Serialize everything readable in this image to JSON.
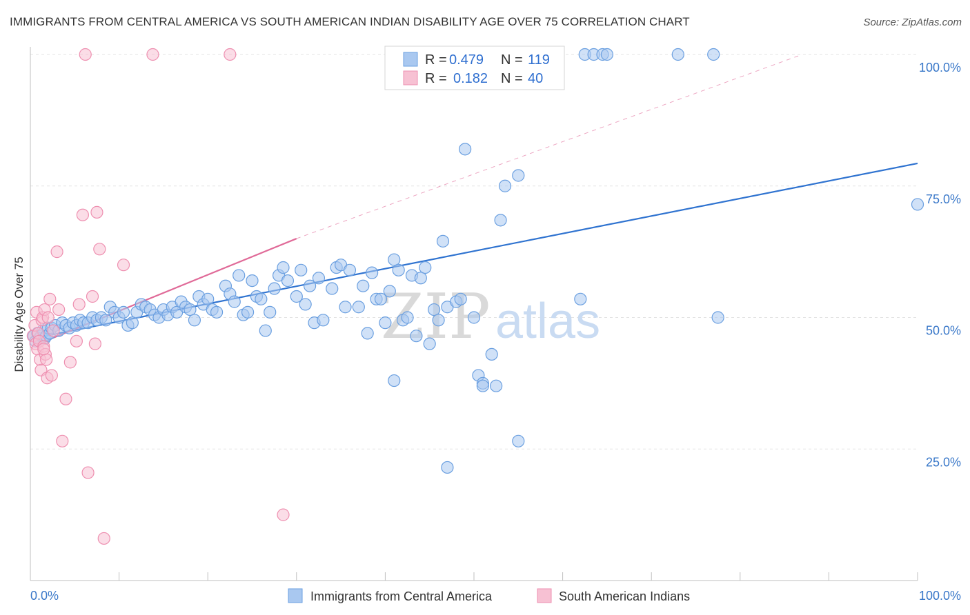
{
  "title": "IMMIGRANTS FROM CENTRAL AMERICA VS SOUTH AMERICAN INDIAN DISABILITY AGE OVER 75 CORRELATION CHART",
  "source": "Source: ZipAtlas.com",
  "watermark": {
    "zip": "ZIP",
    "atlas": "atlas"
  },
  "legend_box": {
    "rows": [
      {
        "r_label": "R =",
        "r_value": "0.479",
        "n_label": "N =",
        "n_value": "119"
      },
      {
        "r_label": "R =",
        "r_value": "0.182",
        "n_label": "N =",
        "n_value": "40"
      }
    ]
  },
  "bottom_legend": [
    "Immigrants from Central America",
    "South American Indians"
  ],
  "chart_data": {
    "type": "scatter",
    "ylabel": "Disability Age Over 75",
    "xlabel": "",
    "xlim": [
      0,
      100
    ],
    "ylim": [
      0,
      100
    ],
    "x_tick_labels": [
      "0.0%",
      "100.0%"
    ],
    "y_tick_labels": [
      {
        "value": 100,
        "label": "100.0%"
      },
      {
        "value": 75,
        "label": "75.0%"
      },
      {
        "value": 50,
        "label": "50.0%"
      },
      {
        "value": 25,
        "label": "25.0%"
      }
    ],
    "grid": true,
    "legend_position": "top-center",
    "series": [
      {
        "name": "Immigrants from Central America",
        "color": "#6a9fe0",
        "fill": "#a9c8f0",
        "line_color": "#2f73d0",
        "trend": {
          "x0": 0.2,
          "y0": 46.0,
          "x1": 100,
          "y1": 79.3
        },
        "points": [
          [
            0.4,
            46.5
          ],
          [
            0.6,
            45.5
          ],
          [
            0.8,
            47.0
          ],
          [
            1.0,
            46.0
          ],
          [
            1.2,
            46.5
          ],
          [
            1.4,
            47.5
          ],
          [
            1.6,
            46.0
          ],
          [
            1.8,
            46.5
          ],
          [
            2.0,
            48.0
          ],
          [
            2.2,
            47.0
          ],
          [
            2.4,
            48.0
          ],
          [
            2.8,
            48.5
          ],
          [
            3.2,
            47.5
          ],
          [
            3.6,
            49.0
          ],
          [
            4.0,
            48.5
          ],
          [
            4.4,
            48.0
          ],
          [
            4.8,
            49.0
          ],
          [
            5.2,
            48.5
          ],
          [
            5.6,
            49.5
          ],
          [
            6.0,
            49.0
          ],
          [
            6.5,
            49.0
          ],
          [
            7.0,
            50.0
          ],
          [
            7.5,
            49.5
          ],
          [
            8.0,
            50.0
          ],
          [
            8.5,
            49.5
          ],
          [
            9.0,
            52.0
          ],
          [
            9.5,
            51.0
          ],
          [
            10.0,
            50.0
          ],
          [
            10.5,
            51.0
          ],
          [
            11.0,
            48.5
          ],
          [
            11.5,
            49.0
          ],
          [
            12.0,
            51.0
          ],
          [
            12.5,
            52.5
          ],
          [
            13.0,
            52.0
          ],
          [
            13.5,
            51.5
          ],
          [
            14.0,
            50.5
          ],
          [
            14.5,
            50.0
          ],
          [
            15.0,
            51.5
          ],
          [
            15.5,
            50.5
          ],
          [
            16.0,
            52.0
          ],
          [
            16.5,
            51.0
          ],
          [
            17.0,
            53.0
          ],
          [
            17.5,
            52.0
          ],
          [
            18.0,
            51.5
          ],
          [
            18.5,
            49.5
          ],
          [
            19.0,
            54.0
          ],
          [
            19.5,
            52.5
          ],
          [
            20.0,
            53.5
          ],
          [
            20.5,
            51.5
          ],
          [
            21.0,
            51.0
          ],
          [
            22.0,
            56.0
          ],
          [
            22.5,
            54.5
          ],
          [
            23.0,
            53.0
          ],
          [
            23.5,
            58.0
          ],
          [
            24.0,
            50.5
          ],
          [
            24.5,
            51.0
          ],
          [
            25.0,
            57.0
          ],
          [
            25.5,
            54.0
          ],
          [
            26.0,
            53.5
          ],
          [
            26.5,
            47.5
          ],
          [
            27.0,
            51.0
          ],
          [
            27.5,
            55.5
          ],
          [
            28.0,
            58.0
          ],
          [
            28.5,
            59.5
          ],
          [
            29.0,
            57.0
          ],
          [
            30.0,
            54.0
          ],
          [
            30.5,
            59.0
          ],
          [
            31.0,
            52.5
          ],
          [
            31.5,
            56.0
          ],
          [
            32.0,
            49.0
          ],
          [
            32.5,
            57.5
          ],
          [
            33.0,
            49.5
          ],
          [
            34.0,
            55.5
          ],
          [
            34.5,
            59.5
          ],
          [
            35.0,
            60.0
          ],
          [
            35.5,
            52.0
          ],
          [
            36.0,
            59.0
          ],
          [
            37.0,
            52.0
          ],
          [
            37.5,
            56.0
          ],
          [
            38.0,
            47.0
          ],
          [
            38.5,
            58.5
          ],
          [
            39.0,
            53.5
          ],
          [
            39.5,
            53.5
          ],
          [
            40.0,
            49.0
          ],
          [
            40.5,
            55.0
          ],
          [
            41.0,
            61.0
          ],
          [
            41.5,
            59.0
          ],
          [
            41.0,
            38.0
          ],
          [
            42.0,
            49.5
          ],
          [
            42.5,
            50.0
          ],
          [
            43.0,
            58.0
          ],
          [
            43.5,
            46.5
          ],
          [
            44.0,
            57.5
          ],
          [
            44.5,
            59.5
          ],
          [
            45.0,
            45.0
          ],
          [
            45.5,
            51.5
          ],
          [
            46.0,
            49.5
          ],
          [
            46.5,
            64.5
          ],
          [
            47.0,
            52.0
          ],
          [
            48.0,
            53.0
          ],
          [
            48.5,
            53.5
          ],
          [
            49.0,
            82.0
          ],
          [
            50.0,
            50.0
          ],
          [
            50.5,
            39.0
          ],
          [
            51.0,
            37.5
          ],
          [
            51.0,
            37.0
          ],
          [
            52.0,
            43.0
          ],
          [
            52.5,
            37.0
          ],
          [
            53.0,
            68.5
          ],
          [
            53.5,
            75.0
          ],
          [
            55.0,
            26.5
          ],
          [
            55.0,
            77.0
          ],
          [
            47.0,
            21.5
          ],
          [
            62.0,
            53.5
          ],
          [
            62.5,
            100.0
          ],
          [
            63.5,
            100.0
          ],
          [
            64.5,
            100.0
          ],
          [
            65.0,
            100.0
          ],
          [
            73.0,
            100.0
          ],
          [
            77.0,
            100.0
          ],
          [
            77.5,
            50.0
          ],
          [
            100.0,
            71.5
          ]
        ]
      },
      {
        "name": "South American Indians",
        "color": "#ee8fb0",
        "fill": "#f7c1d3",
        "line_color": "#e06a98",
        "trend": {
          "x0": 0.2,
          "y0": 44.5,
          "x1": 30.0,
          "y1": 65.0
        },
        "trend_dashed": {
          "x0": 30.0,
          "y0": 65.0,
          "x1": 87.0,
          "y1": 100.0
        },
        "points": [
          [
            0.3,
            46.5
          ],
          [
            0.5,
            48.5
          ],
          [
            0.6,
            45.0
          ],
          [
            0.7,
            51.0
          ],
          [
            0.8,
            44.0
          ],
          [
            0.9,
            47.0
          ],
          [
            1.0,
            45.5
          ],
          [
            1.1,
            42.0
          ],
          [
            1.2,
            40.0
          ],
          [
            1.3,
            49.5
          ],
          [
            1.4,
            50.0
          ],
          [
            1.5,
            44.5
          ],
          [
            1.6,
            51.5
          ],
          [
            1.7,
            43.0
          ],
          [
            1.8,
            42.0
          ],
          [
            1.9,
            38.5
          ],
          [
            2.0,
            50.0
          ],
          [
            2.2,
            53.5
          ],
          [
            2.4,
            39.0
          ],
          [
            2.6,
            47.5
          ],
          [
            3.0,
            62.5
          ],
          [
            3.2,
            51.5
          ],
          [
            3.6,
            26.5
          ],
          [
            4.0,
            34.5
          ],
          [
            4.5,
            41.5
          ],
          [
            5.2,
            45.5
          ],
          [
            5.5,
            52.5
          ],
          [
            5.9,
            69.5
          ],
          [
            6.5,
            20.5
          ],
          [
            7.0,
            54.0
          ],
          [
            7.3,
            45.0
          ],
          [
            7.5,
            70.0
          ],
          [
            7.8,
            63.0
          ],
          [
            8.3,
            8.0
          ],
          [
            10.5,
            60.0
          ],
          [
            6.2,
            100.0
          ],
          [
            13.8,
            100.0
          ],
          [
            22.5,
            100.0
          ],
          [
            28.5,
            12.5
          ],
          [
            1.5,
            44.0
          ]
        ]
      }
    ]
  }
}
